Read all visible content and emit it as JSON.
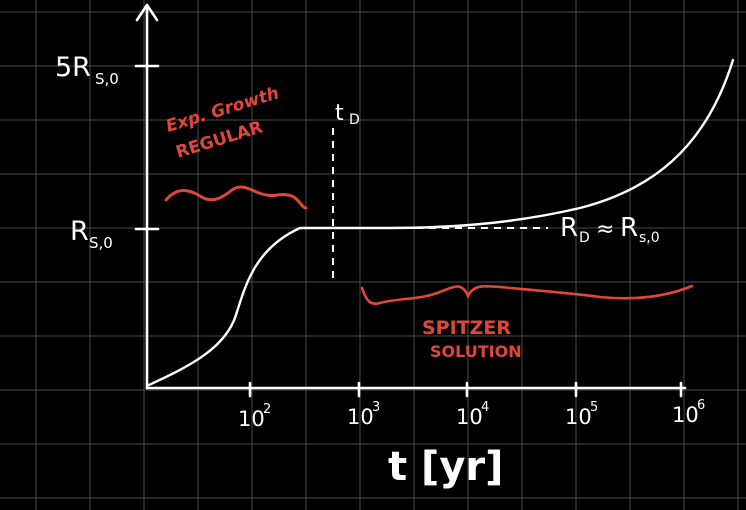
{
  "colors": {
    "background": "#000000",
    "grid": "#4a4a4a",
    "ink": "#ffffff",
    "annotation": "#e0473a"
  },
  "axes": {
    "y_ticks": {
      "upper": "5R",
      "upper_sub": "S,0",
      "lower": "R",
      "lower_sub": "S,0"
    },
    "x_ticks": [
      {
        "base": "10",
        "exp": "2"
      },
      {
        "base": "10",
        "exp": "3"
      },
      {
        "base": "10",
        "exp": "4"
      },
      {
        "base": "10",
        "exp": "5"
      },
      {
        "base": "10",
        "exp": "6"
      }
    ],
    "x_label": "t [yr]"
  },
  "labels": {
    "td": "t",
    "td_sub": "D",
    "rd_lhs": "R",
    "rd_lhs_sub": "D",
    "rd_approx": "≈",
    "rd_rhs": "R",
    "rd_rhs_sub": "s,0"
  },
  "annotations": {
    "exp_line1": "Exp. Growth",
    "exp_line2": "REGULAR",
    "spitzer_line1": "SPITZER",
    "spitzer_line2": "SOLUTION"
  }
}
